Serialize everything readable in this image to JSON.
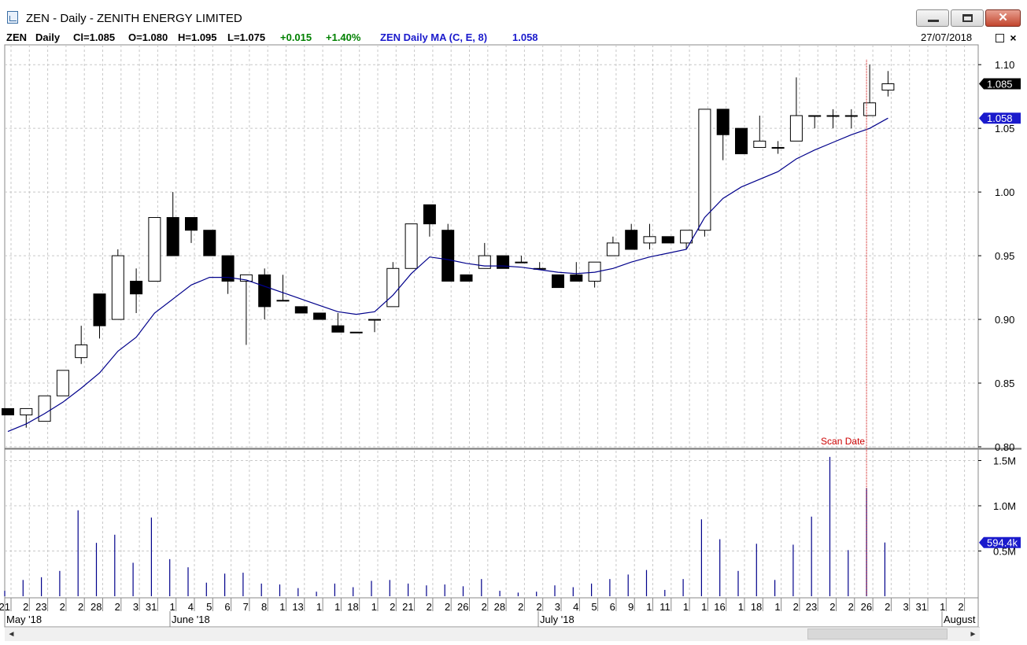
{
  "window": {
    "title": "ZEN - Daily - ZENITH ENERGY LIMITED",
    "buttons": {
      "minimize": "minimize",
      "maximize": "maximize",
      "close": "close"
    }
  },
  "header": {
    "symbol": "ZEN",
    "period": "Daily",
    "close": "Cl=1.085",
    "open": "O=1.080",
    "high": "H=1.095",
    "low": "L=1.075",
    "change": "+0.015",
    "change_pct": "+1.40%",
    "ma_label": "ZEN  Daily MA (C, E, 8)",
    "ma_value": "1.058",
    "date": "27/07/2018"
  },
  "colors": {
    "up": "#ffffff",
    "down": "#000000",
    "ma": "#00008b",
    "volume": "#00008b",
    "scan": "#cc0000",
    "change": "#008000",
    "grid": "#c8c8c8"
  },
  "chart_data": [
    {
      "type": "candlestick",
      "ylim": [
        0.8,
        1.11
      ],
      "ticks": [
        "1.10",
        "1.05",
        "1.00",
        "0.95",
        "0.90",
        "0.85",
        "0.80"
      ],
      "tick_values": [
        1.1,
        1.05,
        1.0,
        0.95,
        0.9,
        0.85,
        0.8
      ],
      "last_price_label": "1.085",
      "last_price": 1.085,
      "ma_label": "1.058",
      "ma_last": 1.058,
      "scan_label": "Scan Date",
      "scan_index": 47,
      "candles": [
        {
          "o": 0.83,
          "h": 0.83,
          "l": 0.825,
          "c": 0.825
        },
        {
          "o": 0.825,
          "h": 0.83,
          "l": 0.815,
          "c": 0.83
        },
        {
          "o": 0.82,
          "h": 0.84,
          "l": 0.82,
          "c": 0.84
        },
        {
          "o": 0.84,
          "h": 0.86,
          "l": 0.84,
          "c": 0.86
        },
        {
          "o": 0.87,
          "h": 0.895,
          "l": 0.865,
          "c": 0.88
        },
        {
          "o": 0.92,
          "h": 0.92,
          "l": 0.885,
          "c": 0.895
        },
        {
          "o": 0.9,
          "h": 0.955,
          "l": 0.9,
          "c": 0.95
        },
        {
          "o": 0.93,
          "h": 0.94,
          "l": 0.905,
          "c": 0.92
        },
        {
          "o": 0.93,
          "h": 0.98,
          "l": 0.93,
          "c": 0.98
        },
        {
          "o": 0.98,
          "h": 1.0,
          "l": 0.95,
          "c": 0.95
        },
        {
          "o": 0.98,
          "h": 0.98,
          "l": 0.96,
          "c": 0.97
        },
        {
          "o": 0.97,
          "h": 0.97,
          "l": 0.95,
          "c": 0.95
        },
        {
          "o": 0.95,
          "h": 0.95,
          "l": 0.92,
          "c": 0.93
        },
        {
          "o": 0.93,
          "h": 0.935,
          "l": 0.88,
          "c": 0.935
        },
        {
          "o": 0.935,
          "h": 0.94,
          "l": 0.9,
          "c": 0.91
        },
        {
          "o": 0.915,
          "h": 0.935,
          "l": 0.915,
          "c": 0.915
        },
        {
          "o": 0.91,
          "h": 0.91,
          "l": 0.905,
          "c": 0.905
        },
        {
          "o": 0.905,
          "h": 0.905,
          "l": 0.9,
          "c": 0.9
        },
        {
          "o": 0.895,
          "h": 0.905,
          "l": 0.89,
          "c": 0.89
        },
        {
          "o": 0.89,
          "h": 0.89,
          "l": 0.89,
          "c": 0.89
        },
        {
          "o": 0.9,
          "h": 0.9,
          "l": 0.89,
          "c": 0.9
        },
        {
          "o": 0.91,
          "h": 0.945,
          "l": 0.91,
          "c": 0.94
        },
        {
          "o": 0.94,
          "h": 0.975,
          "l": 0.94,
          "c": 0.975
        },
        {
          "o": 0.99,
          "h": 0.99,
          "l": 0.965,
          "c": 0.975
        },
        {
          "o": 0.97,
          "h": 0.975,
          "l": 0.93,
          "c": 0.93
        },
        {
          "o": 0.935,
          "h": 0.935,
          "l": 0.93,
          "c": 0.93
        },
        {
          "o": 0.94,
          "h": 0.96,
          "l": 0.94,
          "c": 0.95
        },
        {
          "o": 0.95,
          "h": 0.95,
          "l": 0.94,
          "c": 0.94
        },
        {
          "o": 0.945,
          "h": 0.95,
          "l": 0.945,
          "c": 0.945
        },
        {
          "o": 0.94,
          "h": 0.945,
          "l": 0.94,
          "c": 0.94
        },
        {
          "o": 0.935,
          "h": 0.935,
          "l": 0.925,
          "c": 0.925
        },
        {
          "o": 0.935,
          "h": 0.945,
          "l": 0.93,
          "c": 0.93
        },
        {
          "o": 0.93,
          "h": 0.945,
          "l": 0.925,
          "c": 0.945
        },
        {
          "o": 0.95,
          "h": 0.965,
          "l": 0.95,
          "c": 0.96
        },
        {
          "o": 0.97,
          "h": 0.975,
          "l": 0.955,
          "c": 0.955
        },
        {
          "o": 0.96,
          "h": 0.975,
          "l": 0.955,
          "c": 0.965
        },
        {
          "o": 0.965,
          "h": 0.965,
          "l": 0.96,
          "c": 0.96
        },
        {
          "o": 0.96,
          "h": 0.97,
          "l": 0.955,
          "c": 0.97
        },
        {
          "o": 0.97,
          "h": 1.065,
          "l": 0.965,
          "c": 1.065
        },
        {
          "o": 1.065,
          "h": 1.065,
          "l": 1.025,
          "c": 1.045
        },
        {
          "o": 1.05,
          "h": 1.05,
          "l": 1.03,
          "c": 1.03
        },
        {
          "o": 1.035,
          "h": 1.06,
          "l": 1.035,
          "c": 1.04
        },
        {
          "o": 1.035,
          "h": 1.04,
          "l": 1.03,
          "c": 1.035
        },
        {
          "o": 1.04,
          "h": 1.09,
          "l": 1.04,
          "c": 1.06
        },
        {
          "o": 1.06,
          "h": 1.06,
          "l": 1.05,
          "c": 1.06
        },
        {
          "o": 1.06,
          "h": 1.065,
          "l": 1.05,
          "c": 1.06
        },
        {
          "o": 1.06,
          "h": 1.065,
          "l": 1.05,
          "c": 1.06
        },
        {
          "o": 1.06,
          "h": 1.1,
          "l": 1.06,
          "c": 1.07
        },
        {
          "o": 1.08,
          "h": 1.095,
          "l": 1.075,
          "c": 1.085
        }
      ],
      "ma": [
        0.812,
        0.818,
        0.826,
        0.835,
        0.846,
        0.858,
        0.875,
        0.886,
        0.905,
        0.916,
        0.927,
        0.933,
        0.933,
        0.931,
        0.926,
        0.921,
        0.916,
        0.911,
        0.906,
        0.904,
        0.906,
        0.919,
        0.936,
        0.949,
        0.947,
        0.944,
        0.942,
        0.942,
        0.941,
        0.939,
        0.937,
        0.936,
        0.937,
        0.94,
        0.945,
        0.949,
        0.952,
        0.955,
        0.98,
        0.995,
        1.004,
        1.01,
        1.016,
        1.026,
        1.033,
        1.039,
        1.045,
        1.05,
        1.058
      ]
    },
    {
      "type": "bar",
      "ylim": [
        0,
        1.6
      ],
      "ticks": [
        "1.5M",
        "1.0M",
        "0.5M"
      ],
      "tick_values": [
        1.5,
        1.0,
        0.5
      ],
      "last_label": "594.4k",
      "last_value": 0.594,
      "values": [
        0.06,
        0.18,
        0.21,
        0.28,
        0.95,
        0.59,
        0.68,
        0.37,
        0.87,
        0.41,
        0.32,
        0.15,
        0.25,
        0.26,
        0.14,
        0.13,
        0.09,
        0.05,
        0.14,
        0.1,
        0.17,
        0.18,
        0.14,
        0.12,
        0.13,
        0.11,
        0.19,
        0.06,
        0.04,
        0.05,
        0.12,
        0.1,
        0.14,
        0.19,
        0.24,
        0.29,
        0.07,
        0.19,
        0.85,
        0.63,
        0.28,
        0.58,
        0.18,
        0.57,
        0.88,
        1.54,
        0.51,
        1.19,
        0.594
      ]
    }
  ],
  "x_axis": {
    "day_labels": [
      "21",
      "2",
      "23",
      "2",
      "2",
      "28",
      "2",
      "3",
      "31",
      "1",
      "4",
      "5",
      "6",
      "7",
      "8",
      "1",
      "13",
      "1",
      "1",
      "18",
      "1",
      "2",
      "21",
      "2",
      "2",
      "26",
      "2",
      "28",
      "2",
      "2",
      "3",
      "4",
      "5",
      "6",
      "9",
      "1",
      "11",
      "1",
      "1",
      "16",
      "1",
      "18",
      "1",
      "2",
      "23",
      "2",
      "2",
      "26",
      "2",
      "3",
      "31",
      "1",
      "2"
    ],
    "month_labels": [
      "May '18",
      "June '18",
      "July '18",
      "August"
    ]
  },
  "scrollbar": {
    "left": "◄",
    "right": "►"
  }
}
